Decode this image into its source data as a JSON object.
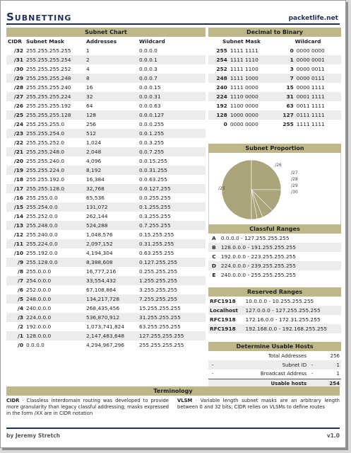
{
  "header": {
    "title": "Subnetting",
    "site": "packetlife.net"
  },
  "subnet_chart": {
    "title": "Subnet Chart",
    "columns": [
      "CIDR",
      "Subnet Mask",
      "Addresses",
      "Wildcard"
    ],
    "rows": [
      [
        "/32",
        "255.255.255.255",
        "1",
        "0.0.0.0"
      ],
      [
        "/31",
        "255.255.255.254",
        "2",
        "0.0.0.1"
      ],
      [
        "/30",
        "255.255.255.252",
        "4",
        "0.0.0.3"
      ],
      [
        "/29",
        "255.255.255.248",
        "8",
        "0.0.0.7"
      ],
      [
        "/28",
        "255.255.255.240",
        "16",
        "0.0.0.15"
      ],
      [
        "/27",
        "255.255.255.224",
        "32",
        "0.0.0.31"
      ],
      [
        "/26",
        "255.255.255.192",
        "64",
        "0.0.0.63"
      ],
      [
        "/25",
        "255.255.255.128",
        "128",
        "0.0.0.127"
      ],
      [
        "/24",
        "255.255.255.0",
        "256",
        "0.0.0.255"
      ],
      [
        "/23",
        "255.255.254.0",
        "512",
        "0.0.1.255"
      ],
      [
        "/22",
        "255.255.252.0",
        "1,024",
        "0.0.3.255"
      ],
      [
        "/21",
        "255.255.248.0",
        "2,048",
        "0.0.7.255"
      ],
      [
        "/20",
        "255.255.240.0",
        "4,096",
        "0.0.15.255"
      ],
      [
        "/19",
        "255.255.224.0",
        "8,192",
        "0.0.31.255"
      ],
      [
        "/18",
        "255.255.192.0",
        "16,384",
        "0.0.63.255"
      ],
      [
        "/17",
        "255.255.128.0",
        "32,768",
        "0.0.127.255"
      ],
      [
        "/16",
        "255.255.0.0",
        "65,536",
        "0.0.255.255"
      ],
      [
        "/15",
        "255.254.0.0",
        "131,072",
        "0.1.255.255"
      ],
      [
        "/14",
        "255.252.0.0",
        "262,144",
        "0.3.255.255"
      ],
      [
        "/13",
        "255.248.0.0",
        "524,288",
        "0.7.255.255"
      ],
      [
        "/12",
        "255.240.0.0",
        "1,048,576",
        "0.15.255.255"
      ],
      [
        "/11",
        "255.224.0.0",
        "2,097,152",
        "0.31.255.255"
      ],
      [
        "/10",
        "255.192.0.0",
        "4,194,304",
        "0.63.255.255"
      ],
      [
        "/9",
        "255.128.0.0",
        "8,388,608",
        "0.127.255.255"
      ],
      [
        "/8",
        "255.0.0.0",
        "16,777,216",
        "0.255.255.255"
      ],
      [
        "/7",
        "254.0.0.0",
        "33,554,432",
        "1.255.255.255"
      ],
      [
        "/6",
        "252.0.0.0",
        "67,108,864",
        "3.255.255.255"
      ],
      [
        "/5",
        "248.0.0.0",
        "134,217,728",
        "7.255.255.255"
      ],
      [
        "/4",
        "240.0.0.0",
        "268,435,456",
        "15.255.255.255"
      ],
      [
        "/3",
        "224.0.0.0",
        "536,870,912",
        "31.255.255.255"
      ],
      [
        "/2",
        "192.0.0.0",
        "1,073,741,824",
        "63.255.255.255"
      ],
      [
        "/1",
        "128.0.0.0",
        "2,147,483,648",
        "127.255.255.255"
      ],
      [
        "/0",
        "0.0.0.0",
        "4,294,967,296",
        "255.255.255.255"
      ]
    ]
  },
  "decimal_binary": {
    "title": "Decimal to Binary",
    "columns": [
      "Subnet Mask",
      "Wildcard"
    ],
    "rows": [
      [
        "255",
        "1111 1111",
        "0",
        "0000 0000"
      ],
      [
        "254",
        "1111 1110",
        "1",
        "0000 0001"
      ],
      [
        "252",
        "1111 1100",
        "3",
        "0000 0011"
      ],
      [
        "248",
        "1111 1000",
        "7",
        "0000 0111"
      ],
      [
        "240",
        "1111 0000",
        "15",
        "0000 1111"
      ],
      [
        "224",
        "1110 0000",
        "31",
        "0001 1111"
      ],
      [
        "192",
        "1100 0000",
        "63",
        "0011 1111"
      ],
      [
        "128",
        "1000 0000",
        "127",
        "0111 1111"
      ],
      [
        "0",
        "0000 0000",
        "255",
        "1111 1111"
      ]
    ]
  },
  "chart_data": {
    "type": "pie",
    "title": "Subnet Proportion",
    "labels": [
      "/25",
      "/26",
      "/27",
      "/28",
      "/29",
      "/30"
    ],
    "values": [
      50,
      25,
      12.5,
      6.25,
      3.125,
      3.125
    ],
    "colors": [
      "#aaa47a",
      "#aaa47a",
      "#aaa47a",
      "#aaa47a",
      "#aaa47a",
      "#aaa47a"
    ]
  },
  "classful": {
    "title": "Classful Ranges",
    "rows": [
      [
        "A",
        "0.0.0.0 - 127.255.255.255"
      ],
      [
        "B",
        "128.0.0.0 - 191.255.255.255"
      ],
      [
        "C",
        "192.0.0.0 - 223.255.255.255"
      ],
      [
        "D",
        "224.0.0.0 - 239.255.255.255"
      ],
      [
        "E",
        "240.0.0.0 - 255.255.255.255"
      ]
    ]
  },
  "reserved": {
    "title": "Reserved Ranges",
    "rows": [
      [
        "RFC1918",
        "10.0.0.0 - 10.255.255.255"
      ],
      [
        "Localhost",
        "127.0.0.0 - 127.255.255.255"
      ],
      [
        "RFC1918",
        "172.16.0.0 - 172.31.255.255"
      ],
      [
        "RFC1918",
        "192.168.0.0 - 192.168.255.255"
      ]
    ]
  },
  "usable": {
    "title": "Determine Usable Hosts",
    "rows": [
      [
        "",
        "Total Addresses",
        "",
        "256"
      ],
      [
        "-",
        "Subnet ID",
        "-",
        "1"
      ],
      [
        "-",
        "Broadcast Address",
        "-",
        "1"
      ],
      [
        "",
        "Usable hosts",
        "",
        "254"
      ]
    ]
  },
  "terminology": {
    "title": "Terminology",
    "cidr_term": "CIDR",
    "cidr_text": " · Classless interdomain routing was developed to provide more granularity than legacy classful addressing; masks expressed in the form /XX are in CIDR notation",
    "vlsm_term": "VLSM",
    "vlsm_text": " · Variable length subnet masks are an arbitrary length between 0 and 32 bits; CIDR relies on VLSMs to define routes"
  },
  "footer": {
    "author": "by Jeremy Stretch",
    "version": "v1.0"
  }
}
